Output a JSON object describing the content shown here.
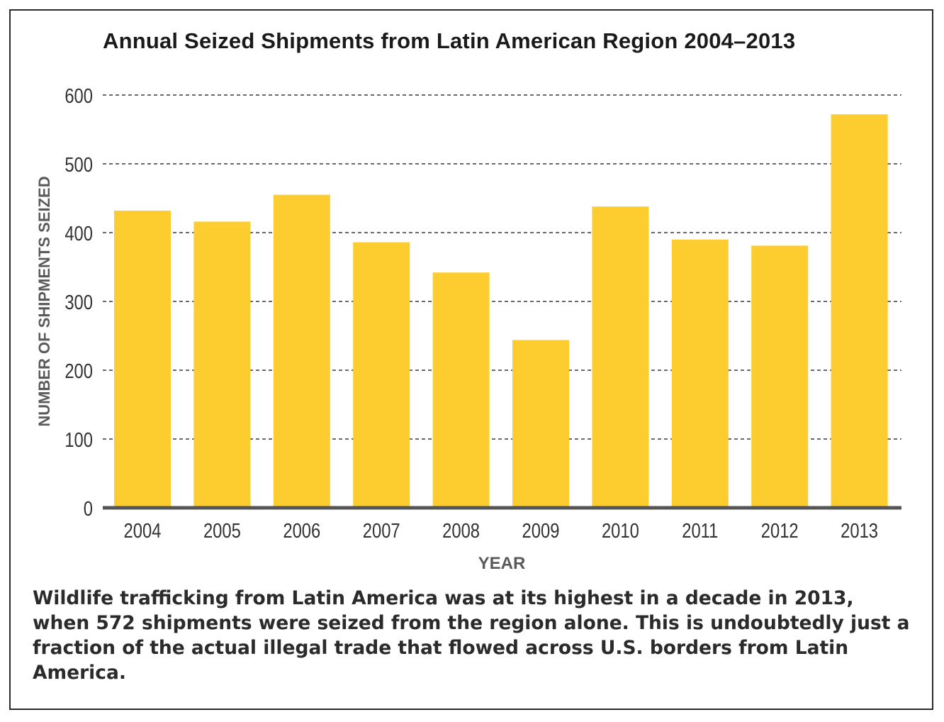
{
  "chart_data": {
    "type": "bar",
    "title": "Annual Seized Shipments from Latin American Region 2004–2013",
    "xlabel": "YEAR",
    "ylabel": "NUMBER OF SHIPMENTS SEIZED",
    "categories": [
      "2004",
      "2005",
      "2006",
      "2007",
      "2008",
      "2009",
      "2010",
      "2011",
      "2012",
      "2013"
    ],
    "values": [
      432,
      416,
      455,
      386,
      342,
      244,
      438,
      390,
      381,
      572
    ],
    "ylim": [
      0,
      600
    ],
    "yticks": [
      0,
      100,
      200,
      300,
      400,
      500,
      600
    ],
    "grid": "horizontal dashed",
    "bar_color": "#FDCD2F",
    "axis_color": "#555555"
  },
  "caption": "Wildlife trafficking from Latin America was at its highest in a decade in 2013, when 572 shipments were seized from the region alone. This is undoubtedly just a fraction of the actual illegal trade that flowed across U.S. borders from Latin America."
}
